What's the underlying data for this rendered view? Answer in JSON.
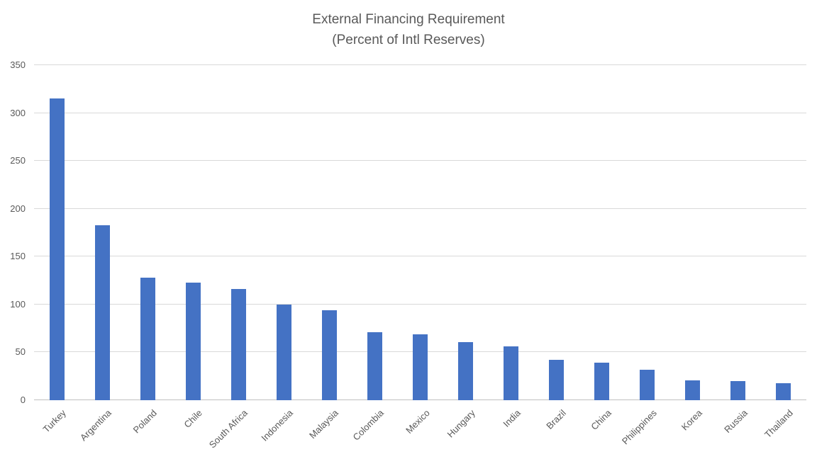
{
  "title": {
    "line1": "External Financing Requirement",
    "line2": "(Percent of Intl Reserves)"
  },
  "chart_data": {
    "type": "bar",
    "title": "External Financing Requirement",
    "subtitle": "(Percent of Intl Reserves)",
    "categories": [
      "Turkey",
      "Argentina",
      "Poland",
      "Chile",
      "South Africa",
      "Indonesia",
      "Malaysia",
      "Colombia",
      "Mexico",
      "Hungary",
      "India",
      "Brazil",
      "China",
      "Philippines",
      "Korea",
      "Russia",
      "Thailand"
    ],
    "values": [
      315,
      183,
      128,
      123,
      116,
      100,
      94,
      71,
      69,
      61,
      56,
      42,
      39,
      32,
      21,
      20,
      18
    ],
    "xlabel": "",
    "ylabel": "",
    "ylim": [
      0,
      350
    ],
    "yticks": [
      0,
      50,
      100,
      150,
      200,
      250,
      300,
      350
    ],
    "grid": true,
    "legend": "none",
    "colors": {
      "bar": "#4472c4",
      "gridline": "#d9d9d9",
      "axis_line": "#c0c0c0",
      "text": "#595959"
    }
  }
}
